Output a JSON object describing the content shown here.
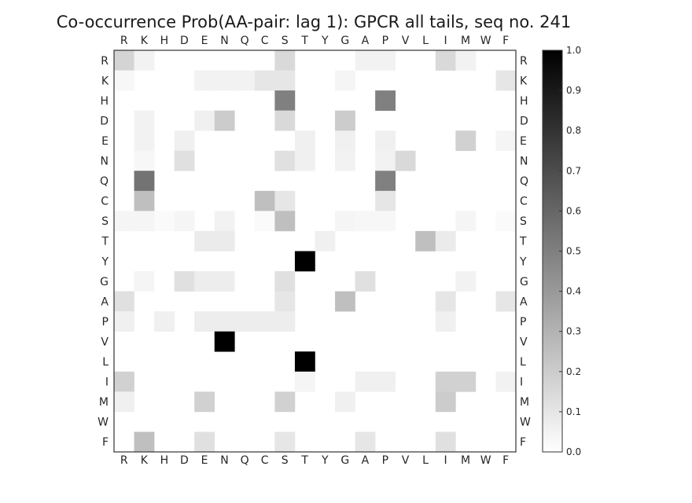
{
  "chart_data": {
    "type": "heatmap",
    "title": "Co-occurrence Prob(AA-pair: lag 1):  GPCR all tails, seq no. 241",
    "x_categories": [
      "R",
      "K",
      "H",
      "D",
      "E",
      "N",
      "Q",
      "C",
      "S",
      "T",
      "Y",
      "G",
      "A",
      "P",
      "V",
      "L",
      "I",
      "M",
      "W",
      "F"
    ],
    "y_categories": [
      "R",
      "K",
      "H",
      "D",
      "E",
      "N",
      "Q",
      "C",
      "S",
      "T",
      "Y",
      "G",
      "A",
      "P",
      "V",
      "L",
      "I",
      "M",
      "W",
      "F"
    ],
    "colormap": "white-to-black",
    "vmin": 0.0,
    "vmax": 1.0,
    "colorbar_ticks": [
      "0.0",
      "0.1",
      "0.2",
      "0.3",
      "0.4",
      "0.5",
      "0.6",
      "0.7",
      "0.8",
      "0.9",
      "1.0"
    ],
    "grid": false,
    "values": [
      [
        0.17,
        0.05,
        0,
        0,
        0,
        0,
        0,
        0,
        0.15,
        0,
        0,
        0,
        0.05,
        0.05,
        0,
        0,
        0.15,
        0.05,
        0,
        0
      ],
      [
        0.03,
        0,
        0,
        0,
        0.05,
        0.05,
        0.05,
        0.1,
        0.1,
        0,
        0,
        0.04,
        0,
        0,
        0,
        0,
        0,
        0,
        0,
        0.1
      ],
      [
        0,
        0,
        0,
        0,
        0,
        0,
        0,
        0,
        0.5,
        0,
        0,
        0,
        0,
        0.5,
        0,
        0,
        0,
        0,
        0,
        0
      ],
      [
        0,
        0.05,
        0,
        0,
        0.06,
        0.2,
        0,
        0,
        0.15,
        0,
        0,
        0.2,
        0,
        0,
        0,
        0,
        0,
        0,
        0,
        0
      ],
      [
        0,
        0.05,
        0,
        0.06,
        0,
        0,
        0,
        0,
        0,
        0.06,
        0,
        0.06,
        0,
        0.06,
        0,
        0,
        0,
        0.18,
        0,
        0.04
      ],
      [
        0,
        0.03,
        0,
        0.12,
        0,
        0,
        0,
        0,
        0.12,
        0.06,
        0,
        0.05,
        0,
        0.05,
        0.15,
        0,
        0,
        0,
        0,
        0
      ],
      [
        0,
        0.55,
        0,
        0,
        0,
        0,
        0,
        0,
        0,
        0,
        0,
        0,
        0,
        0.5,
        0,
        0,
        0,
        0,
        0,
        0
      ],
      [
        0,
        0.25,
        0,
        0,
        0,
        0,
        0,
        0.25,
        0.1,
        0,
        0,
        0,
        0,
        0.1,
        0,
        0,
        0,
        0,
        0,
        0
      ],
      [
        0.04,
        0.04,
        0.02,
        0.04,
        0,
        0.05,
        0,
        0.02,
        0.25,
        0,
        0,
        0.04,
        0.03,
        0.03,
        0,
        0,
        0,
        0.04,
        0,
        0.02
      ],
      [
        0,
        0,
        0,
        0,
        0.08,
        0.08,
        0,
        0,
        0,
        0,
        0.06,
        0,
        0,
        0,
        0,
        0.25,
        0.08,
        0,
        0,
        0
      ],
      [
        0,
        0,
        0,
        0,
        0,
        0,
        0,
        0,
        0,
        1.0,
        0,
        0,
        0,
        0,
        0,
        0,
        0,
        0,
        0,
        0
      ],
      [
        0,
        0.04,
        0,
        0.12,
        0.07,
        0.07,
        0,
        0,
        0.12,
        0,
        0,
        0,
        0.12,
        0,
        0,
        0,
        0,
        0.05,
        0,
        0
      ],
      [
        0.12,
        0,
        0,
        0,
        0,
        0,
        0,
        0,
        0.1,
        0,
        0,
        0.25,
        0,
        0,
        0,
        0,
        0.1,
        0,
        0,
        0.1
      ],
      [
        0.06,
        0,
        0.06,
        0,
        0.07,
        0.07,
        0.07,
        0.07,
        0.07,
        0,
        0,
        0,
        0,
        0,
        0,
        0,
        0.06,
        0,
        0,
        0
      ],
      [
        0,
        0,
        0,
        0,
        0,
        1.0,
        0,
        0,
        0,
        0,
        0,
        0,
        0,
        0,
        0,
        0,
        0,
        0,
        0,
        0
      ],
      [
        0,
        0,
        0,
        0,
        0,
        0,
        0,
        0,
        0,
        1.0,
        0,
        0,
        0,
        0,
        0,
        0,
        0,
        0,
        0,
        0
      ],
      [
        0.18,
        0,
        0,
        0,
        0,
        0,
        0,
        0,
        0,
        0.04,
        0,
        0,
        0.06,
        0.06,
        0,
        0,
        0.18,
        0.18,
        0,
        0.05
      ],
      [
        0.06,
        0,
        0,
        0,
        0.18,
        0,
        0,
        0,
        0.18,
        0,
        0,
        0.06,
        0,
        0,
        0,
        0,
        0.2,
        0,
        0,
        0
      ],
      [
        0,
        0,
        0,
        0,
        0,
        0,
        0,
        0,
        0,
        0,
        0,
        0,
        0,
        0,
        0,
        0,
        0,
        0,
        0,
        0
      ],
      [
        0,
        0.25,
        0,
        0,
        0.12,
        0,
        0,
        0,
        0.1,
        0,
        0,
        0,
        0.1,
        0,
        0,
        0,
        0.12,
        0,
        0,
        0
      ]
    ]
  }
}
